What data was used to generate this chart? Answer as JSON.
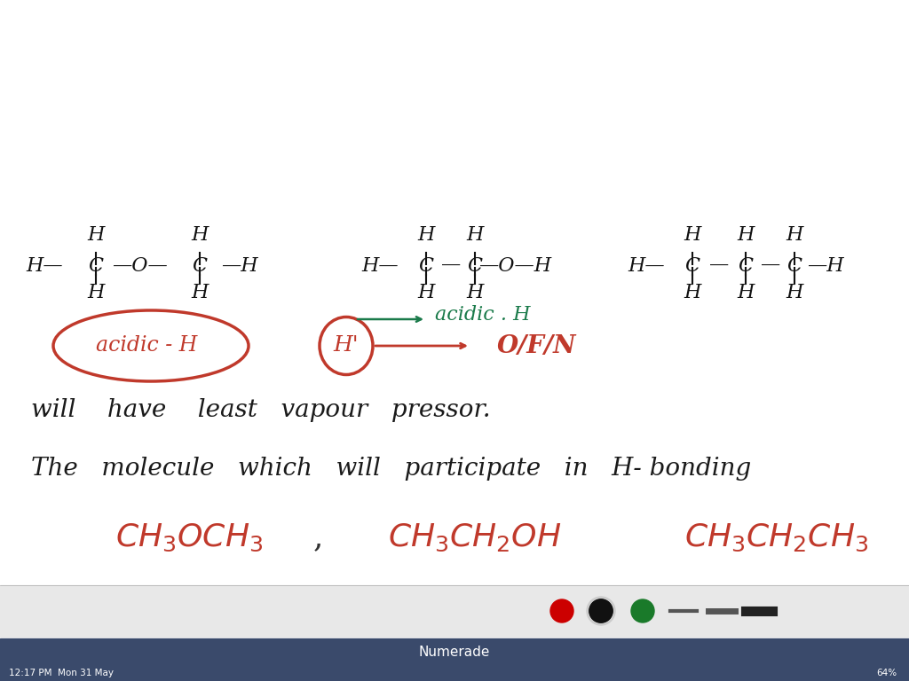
{
  "bg_color": "#ffffff",
  "toolbar_bg": "#3a4a6b",
  "status_bar_bg": "#3a4a6b",
  "status_text": "12:17 PM  Mon 31 May",
  "status_right": "64%",
  "app_title": "Numerade",
  "red_color": "#c0392b",
  "dark_red": "#8b0000",
  "black_color": "#1a1a1a",
  "green_color": "#1a7a4a",
  "formula1": "CH₃OCH₃",
  "formula2": "CH₃CH₂OH",
  "formula3": "CH₃CH₂CH₃",
  "line1": "The  molecule  which  will  participate  in  H-bonding",
  "line2": "will  have  least  vapour  pressor.",
  "circled1": "acidic - H",
  "h_label": "H",
  "ofn_label": "O/F/N",
  "acidic_h_label": "acidic . H"
}
